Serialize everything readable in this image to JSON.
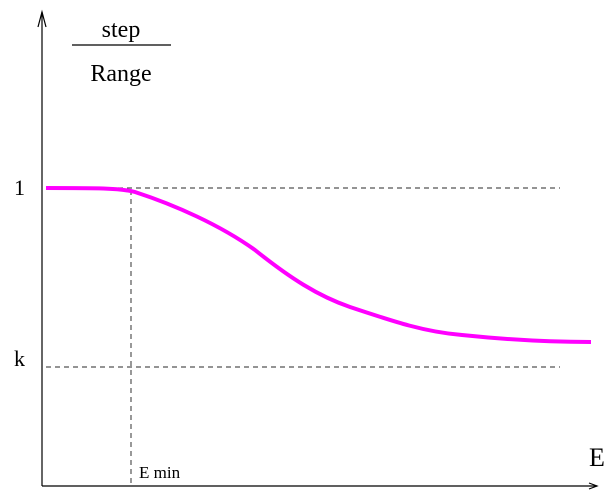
{
  "diagram": {
    "y_label": {
      "numerator": "step",
      "denominator": "Range"
    },
    "x_label": "E",
    "tick_labels": {
      "one": "1",
      "k": "k",
      "e_min": "E min"
    },
    "curve_color": "#ff00ff",
    "axis_color": "#000000",
    "guide_color": "#555555"
  }
}
